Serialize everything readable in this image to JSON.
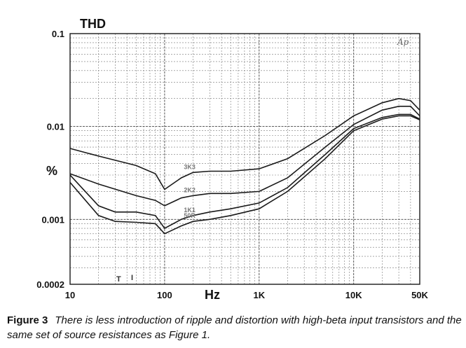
{
  "chart_data": {
    "type": "line",
    "title": "THD",
    "ylabel": "%",
    "xlabel": "Hz",
    "x_scale": "log",
    "y_scale": "log",
    "xlim": [
      10,
      50000
    ],
    "ylim": [
      0.0002,
      0.1
    ],
    "grid": true,
    "x_tick_labels": [
      {
        "value": 10,
        "label": "10"
      },
      {
        "value": 100,
        "label": "100"
      },
      {
        "value": 1000,
        "label": "1K"
      },
      {
        "value": 10000,
        "label": "10K"
      },
      {
        "value": 50000,
        "label": "50K"
      }
    ],
    "y_tick_labels": [
      {
        "value": 0.1,
        "label": "0.1"
      },
      {
        "value": 0.01,
        "label": "0.01"
      },
      {
        "value": 0.001,
        "label": "0.001"
      },
      {
        "value": 0.0002,
        "label": "0.0002"
      }
    ],
    "watermark": "Ap",
    "series": [
      {
        "name": "3K3",
        "x": [
          10,
          20,
          50,
          80,
          100,
          150,
          200,
          300,
          500,
          1000,
          2000,
          5000,
          10000,
          20000,
          30000,
          40000,
          50000
        ],
        "y": [
          0.0058,
          0.0048,
          0.0038,
          0.0031,
          0.0021,
          0.0028,
          0.0032,
          0.0033,
          0.0033,
          0.0035,
          0.0045,
          0.008,
          0.013,
          0.018,
          0.02,
          0.019,
          0.015
        ]
      },
      {
        "name": "2K2",
        "x": [
          10,
          20,
          50,
          80,
          100,
          150,
          200,
          300,
          500,
          1000,
          2000,
          5000,
          10000,
          20000,
          30000,
          40000,
          50000
        ],
        "y": [
          0.0031,
          0.0024,
          0.0018,
          0.0016,
          0.0014,
          0.0017,
          0.0018,
          0.0019,
          0.0019,
          0.002,
          0.0028,
          0.006,
          0.0105,
          0.015,
          0.0165,
          0.0165,
          0.013
        ]
      },
      {
        "name": "1K1",
        "x": [
          10,
          20,
          30,
          50,
          80,
          100,
          150,
          200,
          300,
          500,
          1000,
          2000,
          5000,
          10000,
          20000,
          30000,
          40000,
          50000
        ],
        "y": [
          0.003,
          0.0014,
          0.0012,
          0.0012,
          0.0011,
          0.0008,
          0.001,
          0.0011,
          0.0012,
          0.0013,
          0.0015,
          0.0022,
          0.005,
          0.0095,
          0.0125,
          0.0135,
          0.0135,
          0.012
        ]
      },
      {
        "name": "50R",
        "x": [
          10,
          20,
          30,
          50,
          80,
          100,
          150,
          200,
          300,
          500,
          1000,
          2000,
          5000,
          10000,
          20000,
          30000,
          40000,
          50000
        ],
        "y": [
          0.0025,
          0.0011,
          0.00095,
          0.00093,
          0.0009,
          0.0007,
          0.00085,
          0.00095,
          0.001,
          0.0011,
          0.0013,
          0.002,
          0.0045,
          0.009,
          0.012,
          0.013,
          0.013,
          0.0118
        ]
      }
    ]
  },
  "caption": {
    "label": "Figure 3",
    "text": "There is less introduction of ripple and distortion with high-beta input transistors and the same set of source resistances as Figure 1."
  }
}
